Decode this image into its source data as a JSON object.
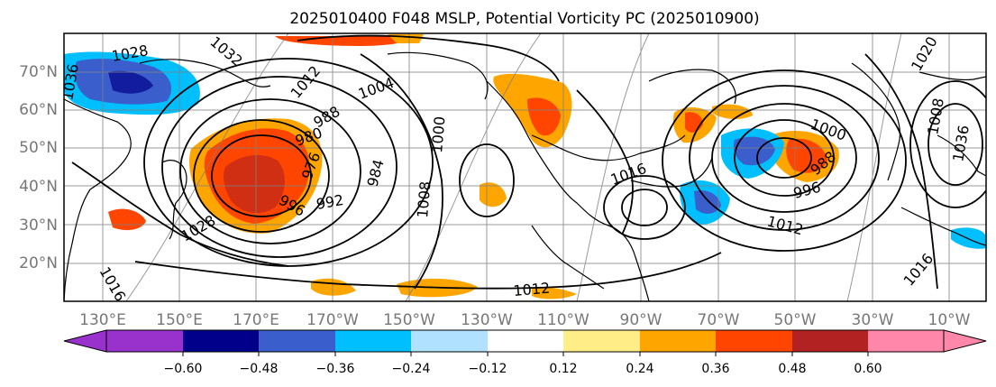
{
  "title": "2025010400 F048 MSLP, Potential Vorticity PC (2025010900)",
  "map": {
    "lat_labels": [
      "70°N",
      "60°N",
      "50°N",
      "40°N",
      "30°N",
      "20°N"
    ],
    "lon_labels": [
      "130°E",
      "150°E",
      "170°E",
      "170°W",
      "150°W",
      "130°W",
      "110°W",
      "90°W",
      "70°W",
      "50°W",
      "30°W",
      "10°W"
    ],
    "isobar_labels": [
      "1028",
      "1032",
      "1036",
      "1012",
      "1004",
      "988",
      "980",
      "976",
      "996",
      "992",
      "984",
      "1000",
      "1008",
      "1028",
      "1012",
      "1016",
      "1020",
      "1016",
      "1012",
      "996",
      "988",
      "1000",
      "1008",
      "1036",
      "1016"
    ],
    "colors": {
      "land_outline": "#000000",
      "isobar": "#000000",
      "grid": "#808080",
      "positive_low": "#ffee88",
      "positive_mid": "#ffa500",
      "positive_high": "#ff4500",
      "positive_max": "#b22222",
      "negative_low": "#00bfff",
      "negative_mid": "#3a5fcd",
      "negative_max": "#00008b"
    }
  },
  "colorbar": {
    "tick_labels": [
      "−0.60",
      "−0.48",
      "−0.36",
      "−0.24",
      "−0.12",
      "0.12",
      "0.24",
      "0.36",
      "0.48",
      "0.60"
    ],
    "colors": [
      "#9932cc",
      "#00008b",
      "#3a5fcd",
      "#00bfff",
      "#b0e2ff",
      "#ffffff",
      "#ffee88",
      "#ffa500",
      "#ff4500",
      "#b22222",
      "#ff88aa"
    ]
  }
}
